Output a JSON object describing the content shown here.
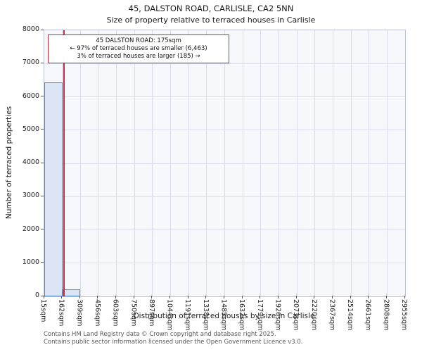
{
  "header": {
    "title": "45, DALSTON ROAD, CARLISLE, CA2 5NN",
    "subtitle": "Size of property relative to terraced houses in Carlisle"
  },
  "annotation": {
    "line1": "45 DALSTON ROAD: 175sqm",
    "line2": "← 97% of terraced houses are smaller (6,463)",
    "line3": "3% of terraced houses are larger (185) →"
  },
  "chart_data": {
    "type": "bar",
    "title": "45, DALSTON ROAD, CARLISLE, CA2 5NN — Size of property relative to terraced houses in Carlisle",
    "xlabel": "Distribution of terraced houses by size in Carlisle",
    "ylabel": "Number of terraced properties",
    "categories": [
      "15sqm",
      "162sqm",
      "309sqm",
      "456sqm",
      "603sqm",
      "750sqm",
      "897sqm",
      "1044sqm",
      "1191sqm",
      "1338sqm",
      "1485sqm",
      "1632sqm",
      "1779sqm",
      "1926sqm",
      "2073sqm",
      "2220sqm",
      "2367sqm",
      "2514sqm",
      "2661sqm",
      "2808sqm",
      "2955sqm"
    ],
    "values": [
      6430,
      218,
      0,
      0,
      0,
      0,
      0,
      0,
      0,
      0,
      0,
      0,
      0,
      0,
      0,
      0,
      0,
      0,
      0,
      0
    ],
    "x_range": [
      15,
      2955
    ],
    "ylim": [
      0,
      8000
    ],
    "yticks": [
      0,
      1000,
      2000,
      3000,
      4000,
      5000,
      6000,
      7000,
      8000
    ],
    "grid": true,
    "marker": {
      "value_sqm": 175,
      "smaller_count": "6,463",
      "smaller_pct": "97%",
      "larger_count": "185",
      "larger_pct": "3%"
    },
    "colors": {
      "bar_fill": "#dbe5f3",
      "bar_edge": "#5a86c2",
      "marker_line": "#cc2936",
      "grid_line": "#d7ddec",
      "plot_bg": "#f6f8fc",
      "frame": "#bcc4d4"
    }
  },
  "footer": {
    "line1": "Contains HM Land Registry data © Crown copyright and database right 2025.",
    "line2": "Contains public sector information licensed under the Open Government Licence v3.0."
  }
}
